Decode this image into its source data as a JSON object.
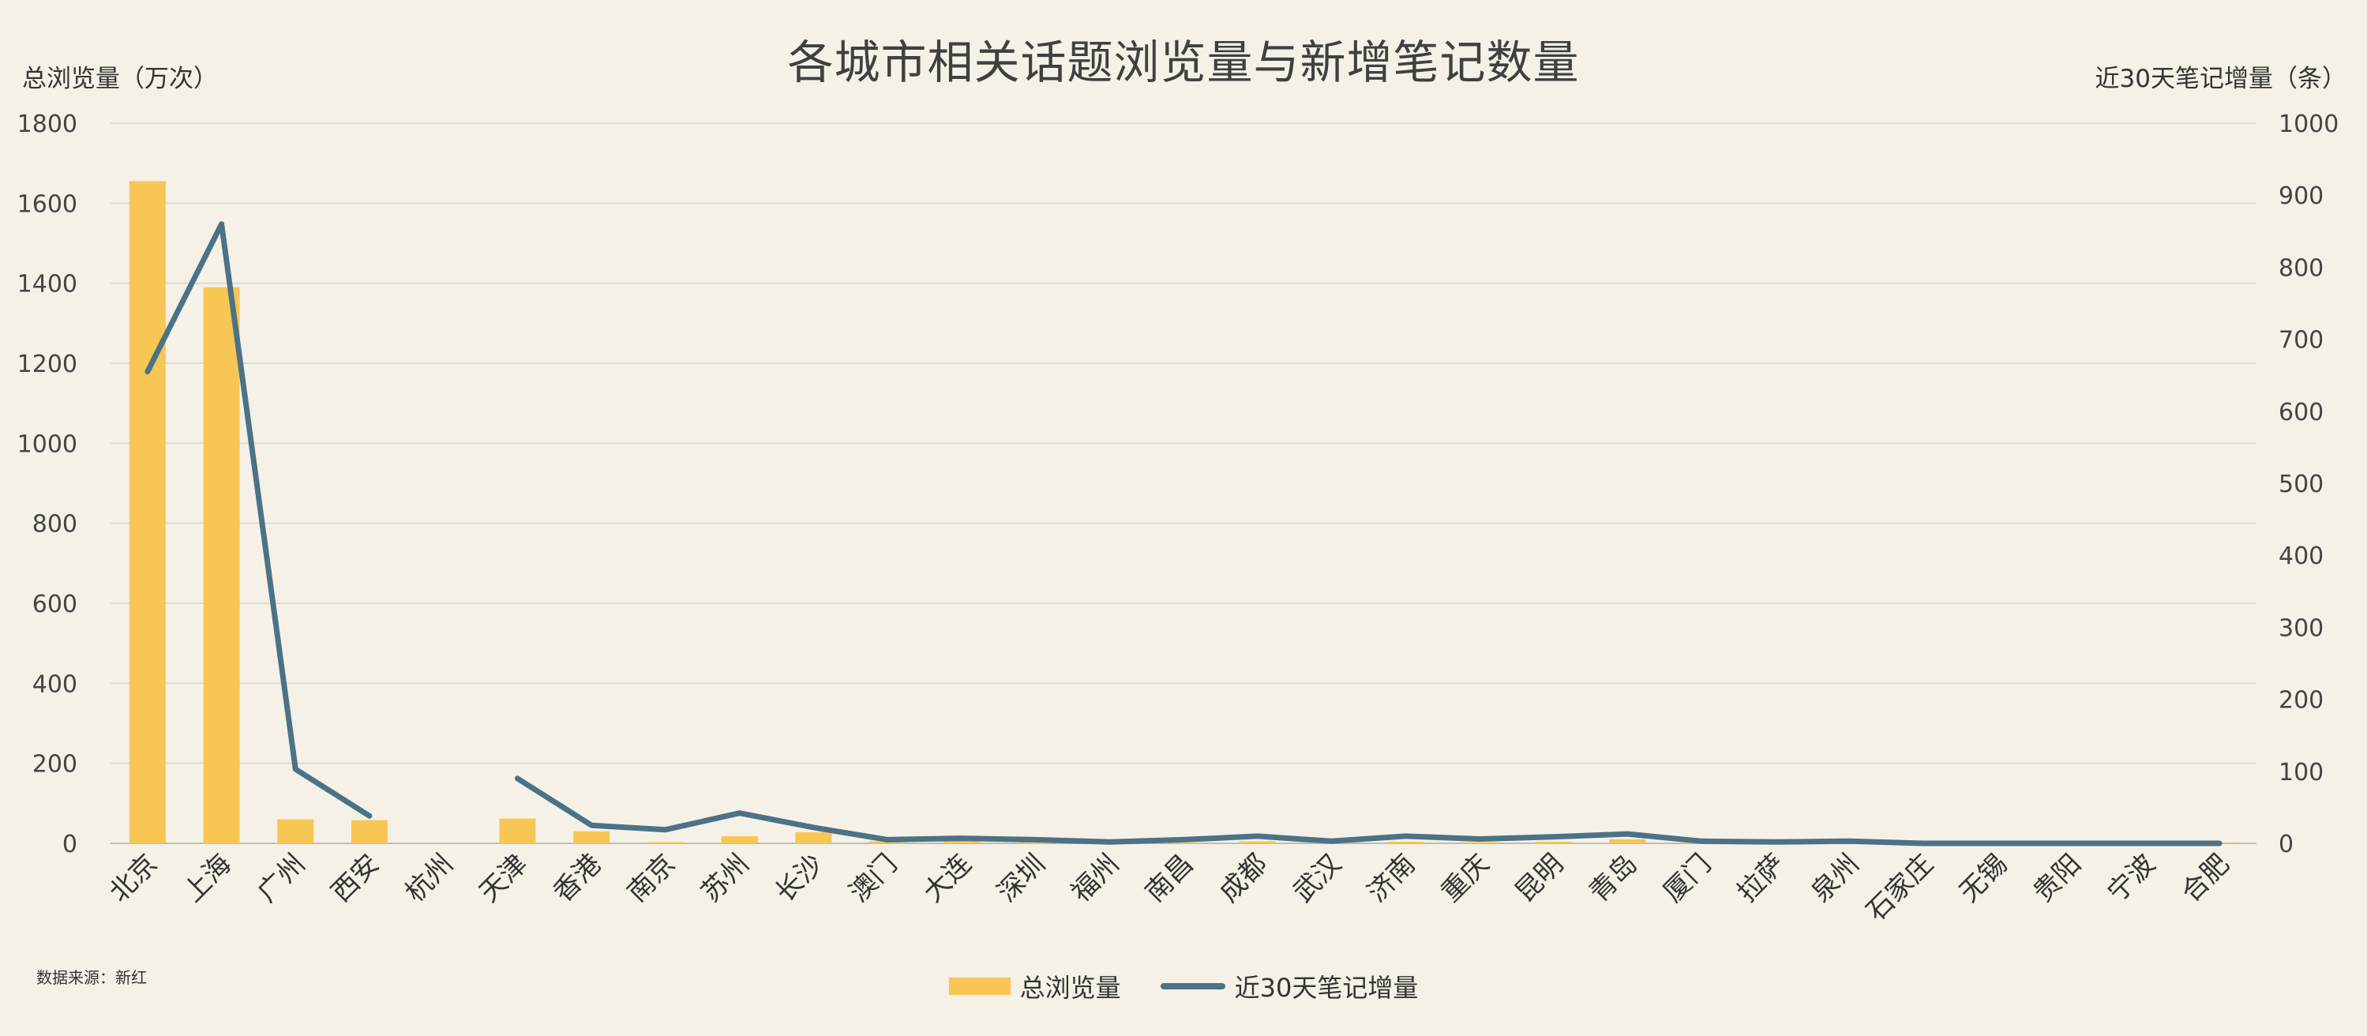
{
  "chart_data": {
    "type": "bar",
    "title": "各城市相关话题浏览量与新增笔记数量",
    "ylabel_left": "总浏览量（万次）",
    "ylabel_right": "近30天笔记增量（条）",
    "ylim_left": [
      0,
      1800
    ],
    "ylim_right": [
      0,
      1000
    ],
    "yticks_left": [
      "0",
      "200",
      "400",
      "600",
      "800",
      "1000",
      "1200",
      "1400",
      "1600",
      "1800"
    ],
    "yticks_right": [
      "0",
      "100",
      "200",
      "300",
      "400",
      "500",
      "600",
      "700",
      "800",
      "900",
      "1000"
    ],
    "grid": true,
    "legend_position": "bottom-center",
    "categories": [
      "北京",
      "上海",
      "广州",
      "西安",
      "杭州",
      "天津",
      "香港",
      "南京",
      "苏州",
      "长沙",
      "澳门",
      "大连",
      "深圳",
      "福州",
      "南昌",
      "成都",
      "武汉",
      "济南",
      "重庆",
      "昆明",
      "青岛",
      "厦门",
      "拉萨",
      "泉州",
      "石家庄",
      "无锡",
      "贵阳",
      "宁波",
      "合肥"
    ],
    "series": [
      {
        "name": "总浏览量",
        "type": "bar",
        "axis": "left",
        "color": "#f7c654",
        "values": [
          1655,
          1390,
          60,
          58,
          0,
          62,
          30,
          3,
          18,
          28,
          5,
          8,
          5,
          3,
          2,
          5,
          2,
          4,
          3,
          4,
          10,
          2,
          1,
          1,
          1,
          1,
          1,
          1,
          1
        ]
      },
      {
        "name": "近30天笔记增量",
        "type": "line",
        "axis": "right",
        "color": "#4b7286",
        "values": [
          655,
          860,
          103,
          38,
          null,
          90,
          25,
          19,
          42,
          22,
          5,
          7,
          5,
          2,
          5,
          10,
          3,
          10,
          6,
          9,
          13,
          3,
          2,
          3,
          0,
          0,
          0,
          0,
          0
        ]
      }
    ],
    "source": "数据来源：新红"
  }
}
